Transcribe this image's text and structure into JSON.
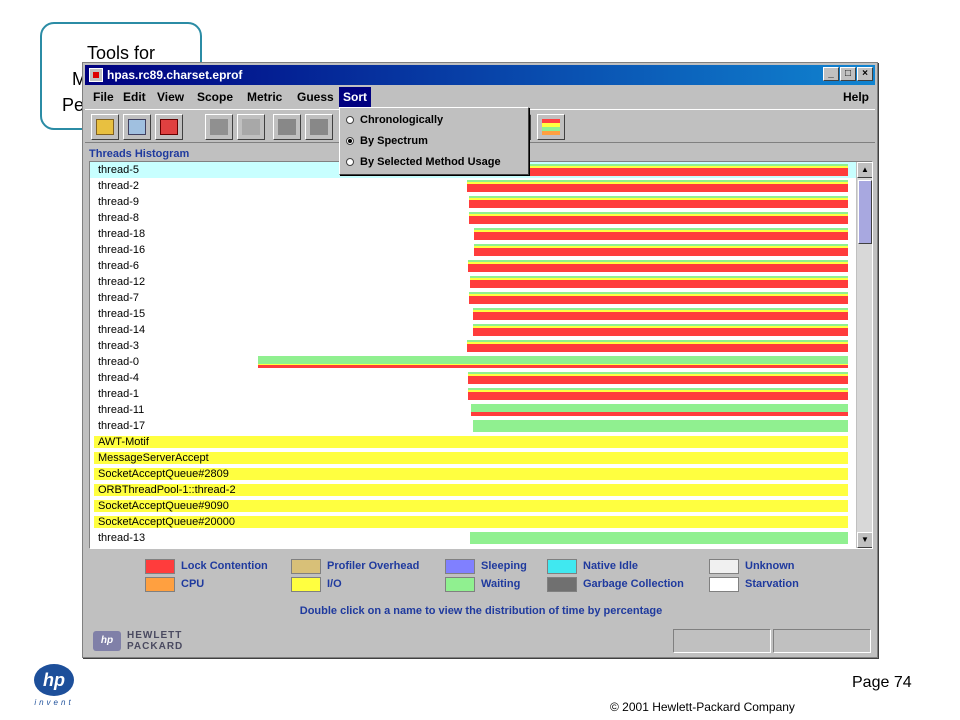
{
  "slide": {
    "title_lines": [
      "Tools for",
      "M",
      "Pe"
    ],
    "page_label": "Page 74",
    "copyright": "© 2001 Hewlett-Packard  Company",
    "logo_text": "hp",
    "logo_tagline": "invent"
  },
  "window": {
    "title": "hpas.rc89.charset.eprof",
    "controls": [
      "_",
      "□",
      "×"
    ]
  },
  "menu": {
    "items": [
      "File",
      "Edit",
      "View",
      "Scope",
      "Metric",
      "Guess",
      "Sort"
    ],
    "help": "Help",
    "active": "Sort"
  },
  "sort_menu": {
    "items": [
      {
        "label": "Chronologically",
        "selected": false
      },
      {
        "label": "By Spectrum",
        "selected": true
      },
      {
        "label": "By Selected Method Usage",
        "selected": false
      }
    ]
  },
  "toolbar": {
    "icons": [
      "open-folder-icon",
      "monitor-hand-icon",
      "delete-icon",
      "save-icon",
      "check-icon",
      "binoculars-icon",
      "binoculars-forward-icon",
      "split-icon",
      "legend-icon"
    ]
  },
  "histogram": {
    "title": "Threads Histogram",
    "rows": [
      {
        "name": "thread-5",
        "start": 0.497,
        "selected": true,
        "kind": "mixed"
      },
      {
        "name": "thread-2",
        "start": 0.495,
        "kind": "mixed"
      },
      {
        "name": "thread-9",
        "start": 0.497,
        "kind": "mixed"
      },
      {
        "name": "thread-8",
        "start": 0.497,
        "kind": "mixed"
      },
      {
        "name": "thread-18",
        "start": 0.504,
        "kind": "mixed"
      },
      {
        "name": "thread-16",
        "start": 0.504,
        "kind": "mixed"
      },
      {
        "name": "thread-6",
        "start": 0.496,
        "kind": "mixed"
      },
      {
        "name": "thread-12",
        "start": 0.499,
        "kind": "mixed"
      },
      {
        "name": "thread-7",
        "start": 0.497,
        "kind": "mixed"
      },
      {
        "name": "thread-15",
        "start": 0.502,
        "kind": "mixed"
      },
      {
        "name": "thread-14",
        "start": 0.502,
        "kind": "mixed"
      },
      {
        "name": "thread-3",
        "start": 0.495,
        "kind": "mixed"
      },
      {
        "name": "thread-0",
        "start": 0.218,
        "kind": "waiting-top"
      },
      {
        "name": "thread-4",
        "start": 0.496,
        "kind": "mixed"
      },
      {
        "name": "thread-1",
        "start": 0.496,
        "kind": "mixed"
      },
      {
        "name": "thread-11",
        "start": 0.5,
        "kind": "mixed-light"
      },
      {
        "name": "thread-17",
        "start": 0.503,
        "kind": "waiting"
      },
      {
        "name": "AWT-Motif",
        "start": 0.0,
        "kind": "io"
      },
      {
        "name": "MessageServerAccept",
        "start": 0.0,
        "kind": "io"
      },
      {
        "name": "SocketAcceptQueue#2809",
        "start": 0.0,
        "kind": "io"
      },
      {
        "name": "ORBThreadPool-1::thread-2",
        "start": 0.0,
        "kind": "io"
      },
      {
        "name": "SocketAcceptQueue#9090",
        "start": 0.0,
        "kind": "io"
      },
      {
        "name": "SocketAcceptQueue#20000",
        "start": 0.0,
        "kind": "io"
      },
      {
        "name": "thread-13",
        "start": 0.499,
        "kind": "waiting"
      }
    ]
  },
  "legend": {
    "items": [
      {
        "label": "Lock Contention",
        "color": "#ff3c3c"
      },
      {
        "label": "CPU",
        "color": "#ffa040"
      },
      {
        "label": "Profiler Overhead",
        "color": "#d8c078"
      },
      {
        "label": "I/O",
        "color": "#ffff40"
      },
      {
        "label": "Sleeping",
        "color": "#8080ff"
      },
      {
        "label": "Waiting",
        "color": "#90f090"
      },
      {
        "label": "Native Idle",
        "color": "#40e8f0"
      },
      {
        "label": "Garbage Collection",
        "color": "#707070"
      },
      {
        "label": "Unknown",
        "color": "#f0f0f0"
      },
      {
        "label": "Starvation",
        "color": "#ffffff"
      }
    ],
    "hint": "Double click on a name to view the distribution of time by percentage"
  },
  "status": {
    "brand": "HEWLETT PACKARD",
    "badge": "hp"
  }
}
